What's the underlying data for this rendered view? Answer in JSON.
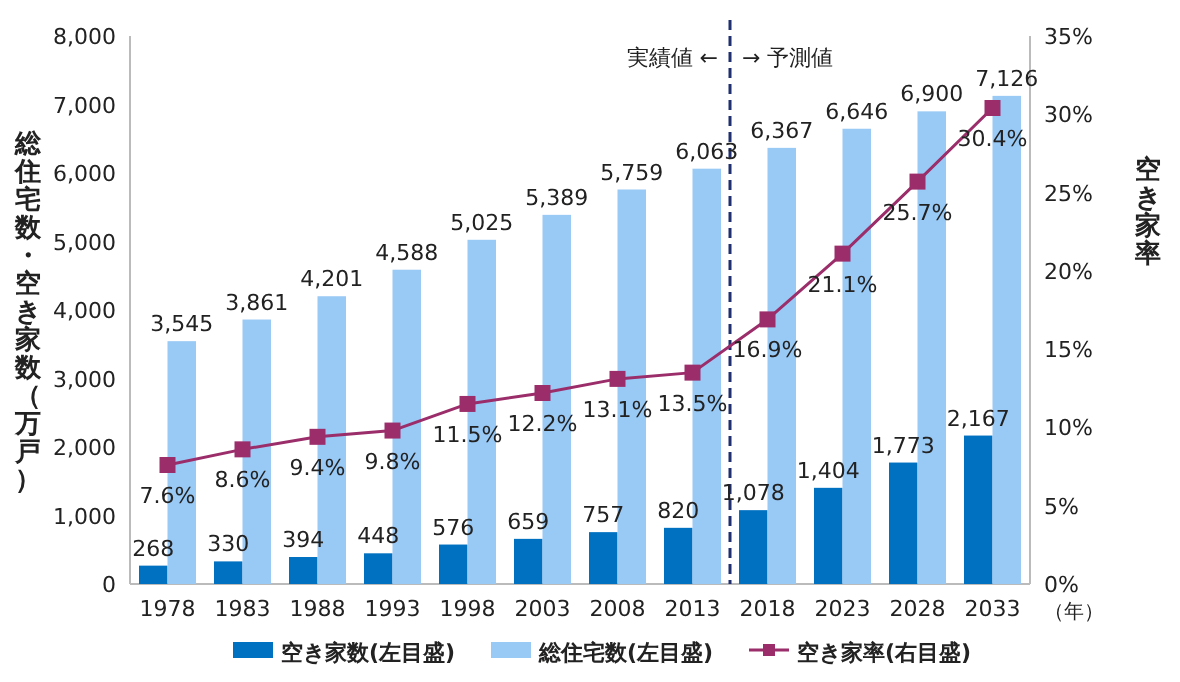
{
  "chart_data": {
    "type": "bar",
    "xlabel": "（年）",
    "ylabel": "総住宅数・空き家数（万戸）",
    "y2label": "空き家率",
    "x": [
      1978,
      1983,
      1988,
      1993,
      1998,
      2003,
      2008,
      2013,
      2018,
      2023,
      2028,
      2033
    ],
    "xlim": [
      1975.5,
      2035.5
    ],
    "xticks": [
      1978,
      1983,
      1988,
      1993,
      1998,
      2003,
      2008,
      2013,
      2018,
      2023,
      2028,
      2033
    ],
    "ylim": [
      0,
      8000
    ],
    "yticks": [
      0,
      {
        "value": 1000,
        "label": "1,000"
      },
      {
        "value": 2000,
        "label": "2,000"
      },
      {
        "value": 3000,
        "label": "3,000"
      },
      {
        "value": 4000,
        "label": "4,000"
      },
      {
        "value": 5000,
        "label": "5,000"
      },
      {
        "value": 6000,
        "label": "6,000"
      },
      {
        "value": 7000,
        "label": "7,000"
      },
      {
        "value": 8000,
        "label": "8,000"
      }
    ],
    "y2lim": [
      0,
      35
    ],
    "y2ticks": [
      {
        "value": 0,
        "label": "0%"
      },
      {
        "value": 5,
        "label": "5%"
      },
      {
        "value": 10,
        "label": "10%"
      },
      {
        "value": 15,
        "label": "15%"
      },
      {
        "value": 20,
        "label": "20%"
      },
      {
        "value": 25,
        "label": "25%"
      },
      {
        "value": 30,
        "label": "30%"
      },
      {
        "value": 35,
        "label": "35%"
      }
    ],
    "series": [
      {
        "name": "空き家数(左目盛)",
        "color": "#0070c0",
        "values": [
          268,
          330,
          394,
          448,
          576,
          659,
          757,
          820,
          1078,
          1404,
          1773,
          2167
        ],
        "value_labels": [
          "268",
          "330",
          "394",
          "448",
          "576",
          "659",
          "757",
          "820",
          "1,078",
          "1,404",
          "1,773",
          "2,167"
        ]
      },
      {
        "name": "総住宅数(左目盛)",
        "color": "#99c9f5",
        "values": [
          3545,
          3861,
          4201,
          4588,
          5025,
          5389,
          5759,
          6063,
          6367,
          6646,
          6900,
          7126
        ],
        "value_labels": [
          "3,545",
          "3,861",
          "4,201",
          "4,588",
          "5,025",
          "5,389",
          "5,759",
          "6,063",
          "6,367",
          "6,646",
          "6,900",
          "7,126"
        ]
      },
      {
        "name": "空き家率(右目盛)",
        "type": "line",
        "axis": "y2",
        "marker": "square",
        "color": "#9b2d6a",
        "values": [
          7.6,
          8.6,
          9.4,
          9.8,
          11.5,
          12.2,
          13.1,
          13.5,
          16.9,
          21.1,
          25.7,
          30.4
        ],
        "value_labels": [
          "7.6%",
          "8.6%",
          "9.4%",
          "9.8%",
          "11.5%",
          "12.2%",
          "13.1%",
          "13.5%",
          "16.9%",
          "21.1%",
          "25.7%",
          "30.4%"
        ]
      }
    ],
    "ref_lines": [
      {
        "axis": "x",
        "value": 2015.5,
        "line_style": "dashed",
        "color": "#1f2f6f"
      }
    ],
    "annotations": [
      {
        "text": "実績値 ←",
        "x": 2015.5,
        "y": 7700
      },
      {
        "text": "→ 予測値",
        "x": 2015.5,
        "y": 7700
      }
    ],
    "legend": "bottom"
  }
}
